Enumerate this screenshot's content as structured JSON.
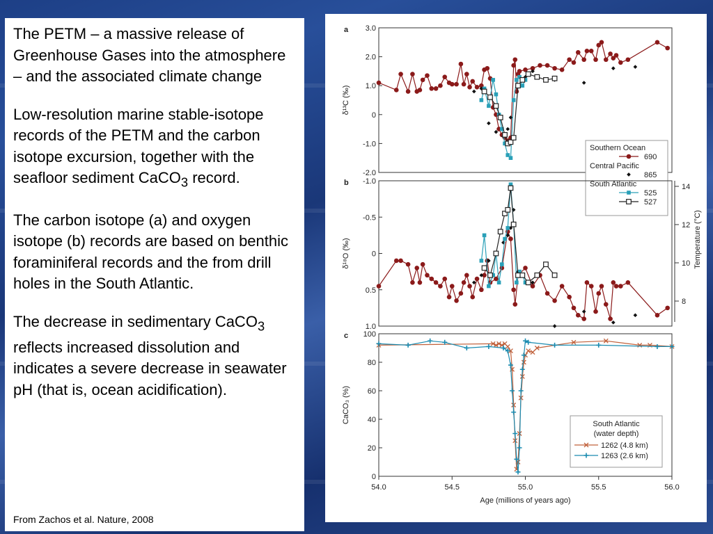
{
  "text": {
    "p1": "The PETM – a massive release of Greenhouse Gases into the atmosphere – and the associated climate change",
    "p2_a": "Low-resolution marine stable-isotope records of the PETM and the carbon isotope excursion, together with the seafloor sediment CaCO",
    "p2_sub": "3",
    "p2_b": " record.",
    "p3": "The carbon isotope (a) and oxygen isotope (b) records are based on benthic foraminiferal records and the from drill holes in the South Atlantic.",
    "p4_a": "The decrease in sedimentary CaCO",
    "p4_sub": "3",
    "p4_b": " reflects increased dissolution and indicates a severe decrease in seawater pH (that is, ocean acidification).",
    "source": "From Zachos et al. Nature, 2008"
  },
  "colors": {
    "site690": "#8b1a1a",
    "site865": "#111111",
    "site525": "#2aa0b8",
    "site527": "#222222",
    "site1262": "#c0603a",
    "site1263": "#1a8bb0"
  },
  "chart_data": [
    {
      "type": "line",
      "panel": "a",
      "ylabel": "δ¹³C (‰)",
      "ylim": [
        -2.0,
        3.0
      ],
      "yticks": [
        "3.0",
        "2.0",
        "1.0",
        "0",
        "-1.0",
        "-2.0"
      ],
      "xlim": [
        54.0,
        56.0
      ],
      "legend": {
        "placement": "bottom-right",
        "groups": [
          {
            "title": "Southern Ocean",
            "entries": [
              "690"
            ]
          },
          {
            "title": "Central Pacific",
            "entries": [
              "865"
            ]
          },
          {
            "title": "South Atlantic",
            "entries": [
              "525",
              "527"
            ]
          }
        ]
      },
      "series": [
        {
          "name": "690",
          "marker": "circle",
          "line": true,
          "x": [
            54.0,
            54.12,
            54.15,
            54.2,
            54.23,
            54.26,
            54.28,
            54.3,
            54.33,
            54.36,
            54.39,
            54.42,
            54.45,
            54.48,
            54.5,
            54.53,
            54.56,
            54.58,
            54.6,
            54.62,
            54.64,
            54.67,
            54.7,
            54.72,
            54.74,
            54.76,
            54.78,
            54.8,
            54.82,
            54.84,
            54.86,
            54.88,
            54.9,
            54.92,
            54.93,
            54.94,
            54.95,
            54.96,
            55.0,
            55.05,
            55.1,
            55.15,
            55.2,
            55.25,
            55.3,
            55.33,
            55.36,
            55.4,
            55.42,
            55.45,
            55.48,
            55.5,
            55.52,
            55.55,
            55.58,
            55.6,
            55.62,
            55.65,
            55.7,
            55.9,
            55.97
          ],
          "y": [
            1.1,
            0.85,
            1.4,
            0.8,
            1.4,
            0.8,
            0.85,
            1.2,
            1.35,
            0.9,
            0.9,
            1.0,
            1.3,
            1.1,
            1.05,
            1.05,
            1.75,
            1.05,
            1.4,
            0.95,
            1.15,
            0.95,
            1.0,
            1.55,
            1.6,
            1.25,
            0.25,
            0.0,
            -0.5,
            -0.7,
            -0.8,
            -0.9,
            -0.8,
            1.7,
            1.9,
            0.8,
            1.4,
            1.5,
            1.55,
            1.6,
            1.7,
            1.7,
            1.6,
            1.55,
            1.9,
            1.8,
            2.15,
            1.9,
            2.2,
            2.2,
            1.9,
            2.4,
            2.5,
            1.9,
            2.1,
            1.95,
            2.05,
            1.8,
            1.9,
            2.5,
            2.3
          ]
        },
        {
          "name": "865",
          "marker": "diamond",
          "line": false,
          "x": [
            54.65,
            54.7,
            54.75,
            54.8,
            54.85,
            54.88,
            54.9,
            54.92,
            54.95,
            55.0,
            55.05,
            55.2,
            55.4,
            55.6,
            55.75
          ],
          "y": [
            0.8,
            0.9,
            -0.3,
            -0.6,
            -0.75,
            -0.5,
            -0.1,
            0.5,
            1.0,
            1.3,
            1.5,
            1.2,
            1.1,
            1.6,
            1.65
          ]
        },
        {
          "name": "525",
          "marker": "square",
          "line": true,
          "x": [
            54.7,
            54.72,
            54.75,
            54.78,
            54.8,
            54.82,
            54.84,
            54.86,
            54.88,
            54.9,
            54.92,
            54.94,
            54.96,
            54.98,
            55.0
          ],
          "y": [
            0.5,
            0.9,
            0.3,
            1.2,
            0.7,
            0.0,
            -0.5,
            -1.0,
            -1.4,
            -1.5,
            0.5,
            1.2,
            1.3,
            1.0,
            1.2
          ]
        },
        {
          "name": "527",
          "marker": "open-square",
          "line": true,
          "x": [
            54.72,
            54.76,
            54.8,
            54.83,
            54.86,
            54.88,
            54.9,
            54.92,
            54.95,
            54.98,
            55.02,
            55.08,
            55.14,
            55.2
          ],
          "y": [
            0.8,
            0.6,
            0.3,
            -0.1,
            -0.7,
            -1.0,
            -0.95,
            -0.8,
            1.0,
            1.2,
            1.4,
            1.3,
            1.2,
            1.25
          ]
        }
      ]
    },
    {
      "type": "line",
      "panel": "b",
      "ylabel": "δ¹⁸O (‰)",
      "y2label": "Temperature (°C)",
      "ylim": [
        1.0,
        -1.0
      ],
      "yticks": [
        "-1.0",
        "-0.5",
        "0",
        "0.5",
        "1.0"
      ],
      "y2ticks": [
        "14",
        "12",
        "10",
        "8"
      ],
      "xlim": [
        54.0,
        56.0
      ],
      "series": [
        {
          "name": "690",
          "marker": "circle",
          "line": true,
          "x": [
            54.0,
            54.12,
            54.15,
            54.2,
            54.23,
            54.26,
            54.28,
            54.3,
            54.33,
            54.36,
            54.39,
            54.42,
            54.45,
            54.48,
            54.5,
            54.53,
            54.56,
            54.58,
            54.6,
            54.62,
            54.64,
            54.67,
            54.7,
            54.72,
            54.74,
            54.76,
            54.8,
            54.84,
            54.88,
            54.9,
            54.92,
            54.93,
            54.95,
            55.0,
            55.05,
            55.1,
            55.15,
            55.2,
            55.25,
            55.3,
            55.33,
            55.36,
            55.4,
            55.42,
            55.45,
            55.48,
            55.5,
            55.52,
            55.55,
            55.58,
            55.6,
            55.62,
            55.65,
            55.7,
            55.9,
            55.97
          ],
          "y": [
            0.45,
            0.1,
            0.1,
            0.15,
            0.4,
            0.2,
            0.4,
            0.15,
            0.3,
            0.35,
            0.4,
            0.45,
            0.35,
            0.6,
            0.45,
            0.65,
            0.55,
            0.4,
            0.3,
            0.45,
            0.6,
            0.35,
            0.5,
            0.3,
            0.1,
            0.4,
            0.35,
            0.2,
            -0.3,
            -0.2,
            0.5,
            0.7,
            0.3,
            0.2,
            0.45,
            0.3,
            0.55,
            0.65,
            0.45,
            0.6,
            0.75,
            0.85,
            0.9,
            0.4,
            0.45,
            0.8,
            0.55,
            0.45,
            0.7,
            0.9,
            0.4,
            0.45,
            0.45,
            0.4,
            0.85,
            0.75
          ]
        },
        {
          "name": "865",
          "marker": "diamond",
          "line": false,
          "x": [
            54.65,
            54.7,
            54.75,
            54.8,
            54.85,
            54.88,
            54.9,
            54.92,
            54.95,
            55.05,
            55.2,
            55.4,
            55.6,
            55.75
          ],
          "y": [
            0.4,
            0.3,
            0.1,
            0.0,
            -0.15,
            -0.25,
            -0.35,
            -0.6,
            0.25,
            0.4,
            1.0,
            0.8,
            0.95,
            0.85
          ]
        },
        {
          "name": "525",
          "marker": "square",
          "line": true,
          "x": [
            54.7,
            54.72,
            54.75,
            54.78,
            54.8,
            54.82,
            54.84,
            54.86,
            54.88,
            54.9,
            54.92,
            54.94,
            54.96,
            54.98,
            55.0
          ],
          "y": [
            0.1,
            -0.25,
            0.45,
            0.3,
            0.0,
            0.4,
            0.15,
            -0.2,
            -0.35,
            -0.95,
            -0.4,
            0.4,
            0.25,
            0.3,
            0.4
          ]
        },
        {
          "name": "527",
          "marker": "open-square",
          "line": true,
          "x": [
            54.72,
            54.76,
            54.8,
            54.83,
            54.86,
            54.88,
            54.9,
            54.92,
            54.95,
            54.98,
            55.02,
            55.08,
            55.14,
            55.2
          ],
          "y": [
            0.2,
            0.3,
            0.0,
            -0.3,
            -0.55,
            -0.6,
            -0.9,
            -0.4,
            0.3,
            0.3,
            0.4,
            0.3,
            0.15,
            0.3
          ]
        }
      ]
    },
    {
      "type": "line",
      "panel": "c",
      "ylabel": "CaCO₃ (%)",
      "xlabel": "Age (millions of years ago)",
      "ylim": [
        0,
        100
      ],
      "yticks": [
        "100",
        "80",
        "60",
        "40",
        "20",
        "0"
      ],
      "xlim": [
        54.0,
        56.0
      ],
      "xticks": [
        "54.0",
        "54.5",
        "55.0",
        "55.5",
        "56.0"
      ],
      "legend": {
        "placement": "bottom-right",
        "title": "South Atlantic",
        "subtitle": "(water depth)",
        "entries": [
          "1262 (4.8 km)",
          "1263 (2.6 km)"
        ]
      },
      "series": [
        {
          "name": "1262 (4.8 km)",
          "marker": "x",
          "line": true,
          "x": [
            54.0,
            54.78,
            54.8,
            54.82,
            54.84,
            54.86,
            54.88,
            54.9,
            54.91,
            54.92,
            54.93,
            54.94,
            54.95,
            54.96,
            54.97,
            54.98,
            54.99,
            55.0,
            55.02,
            55.05,
            55.08,
            55.33,
            55.55,
            55.78,
            55.85,
            56.0
          ],
          "y": [
            92,
            93,
            92,
            93,
            92,
            93,
            91,
            88,
            75,
            50,
            25,
            5,
            10,
            30,
            55,
            70,
            80,
            85,
            88,
            87,
            90,
            94,
            95,
            92,
            92,
            91
          ]
        },
        {
          "name": "1263 (2.6 km)",
          "marker": "plus",
          "line": true,
          "x": [
            54.0,
            54.2,
            54.35,
            54.45,
            54.6,
            54.75,
            54.85,
            54.88,
            54.9,
            54.91,
            54.92,
            54.93,
            54.94,
            54.95,
            54.96,
            54.97,
            54.98,
            54.99,
            55.0,
            55.02,
            55.2,
            55.5,
            55.9,
            56.0
          ],
          "y": [
            93,
            92,
            95,
            94,
            90,
            91,
            90,
            88,
            78,
            60,
            45,
            30,
            12,
            3,
            20,
            60,
            75,
            85,
            95,
            94,
            92,
            92,
            91,
            91
          ]
        }
      ]
    }
  ]
}
